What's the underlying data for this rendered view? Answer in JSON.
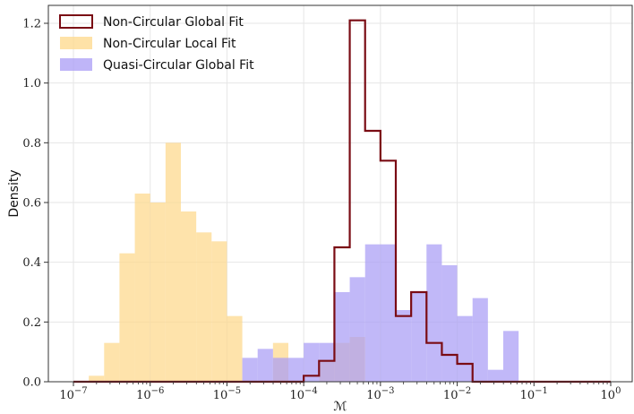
{
  "chart_data": {
    "type": "histogram",
    "title": "",
    "xlabel": "ℳ",
    "ylabel": "Density",
    "xscale": "log",
    "xlim": [
      1e-07,
      1
    ],
    "ylim": [
      0,
      1.26
    ],
    "grid": true,
    "legend_position": "top-left",
    "x_tick_exponents": [
      -7,
      -6,
      -5,
      -4,
      -3,
      -2,
      -1,
      0
    ],
    "x_tick_base": "10",
    "y_ticks": [
      "0.0",
      "0.2",
      "0.4",
      "0.6",
      "0.8",
      "1.0",
      "1.2"
    ],
    "y_tick_values": [
      0.0,
      0.2,
      0.4,
      0.6,
      0.8,
      1.0,
      1.2
    ],
    "series": [
      {
        "name": "Non-Circular Local Fit",
        "style": "filled",
        "color": "#fdd88a",
        "bin_edges": [
          1e-07,
          1.585e-07,
          2.512e-07,
          3.981e-07,
          6.31e-07,
          1e-06,
          1.585e-06,
          2.512e-06,
          3.981e-06,
          6.31e-06,
          1e-05,
          1.585e-05,
          2.512e-05,
          3.981e-05,
          6.31e-05,
          0.0001,
          0.0001585,
          0.0002512,
          0.0003981,
          0.000631,
          0.001
        ],
        "values": [
          0.0,
          0.02,
          0.13,
          0.43,
          0.63,
          0.6,
          0.8,
          0.57,
          0.5,
          0.47,
          0.22,
          0.0,
          0.0,
          0.13,
          0.0,
          0.0,
          0.07,
          0.13,
          0.15,
          0.0
        ]
      },
      {
        "name": "Quasi-Circular Global Fit",
        "style": "filled",
        "color": "#a99cf5",
        "bin_edges": [
          1e-07,
          1.585e-07,
          2.512e-07,
          3.981e-07,
          6.31e-07,
          1e-06,
          1.585e-06,
          2.512e-06,
          3.981e-06,
          6.31e-06,
          1e-05,
          1.585e-05,
          2.512e-05,
          3.981e-05,
          6.31e-05,
          0.0001,
          0.0001585,
          0.0002512,
          0.0003981,
          0.000631,
          0.001,
          0.001585,
          0.002512,
          0.003981,
          0.00631,
          0.01,
          0.01585,
          0.02512,
          0.03981,
          0.0631,
          0.1,
          0.1585,
          0.2512,
          0.3981,
          0.631,
          1
        ],
        "values": [
          0,
          0,
          0,
          0,
          0,
          0,
          0,
          0,
          0,
          0,
          0,
          0.08,
          0.11,
          0.08,
          0.08,
          0.13,
          0.13,
          0.3,
          0.35,
          0.46,
          0.46,
          0.24,
          0.3,
          0.46,
          0.39,
          0.22,
          0.28,
          0.04,
          0.17,
          0.0,
          0.0,
          0.0,
          0.0,
          0.0,
          0.0
        ]
      },
      {
        "name": "Non-Circular Global Fit",
        "style": "step",
        "color": "#7a0c14",
        "bin_edges": [
          1e-07,
          0.0001,
          0.0001585,
          0.0002512,
          0.0003981,
          0.000631,
          0.001,
          0.001585,
          0.002512,
          0.003981,
          0.00631,
          0.01,
          0.01585,
          0.02512,
          0.03981,
          0.0631,
          0.1,
          0.1585,
          0.2512,
          0.3981,
          0.631,
          1
        ],
        "values": [
          0.0,
          0.02,
          0.07,
          0.45,
          1.21,
          0.84,
          0.74,
          0.22,
          0.3,
          0.13,
          0.09,
          0.06,
          0.0,
          0.0,
          0.0,
          0.0,
          0.0,
          0.0,
          0.0,
          0.0,
          0.0
        ]
      }
    ],
    "legend": [
      {
        "label": "Non-Circular Global Fit",
        "style": "step",
        "color": "#7a0c14"
      },
      {
        "label": "Non-Circular Local Fit",
        "style": "filled",
        "color": "#fdd88a"
      },
      {
        "label": "Quasi-Circular Global Fit",
        "style": "filled",
        "color": "#a99cf5"
      }
    ]
  }
}
